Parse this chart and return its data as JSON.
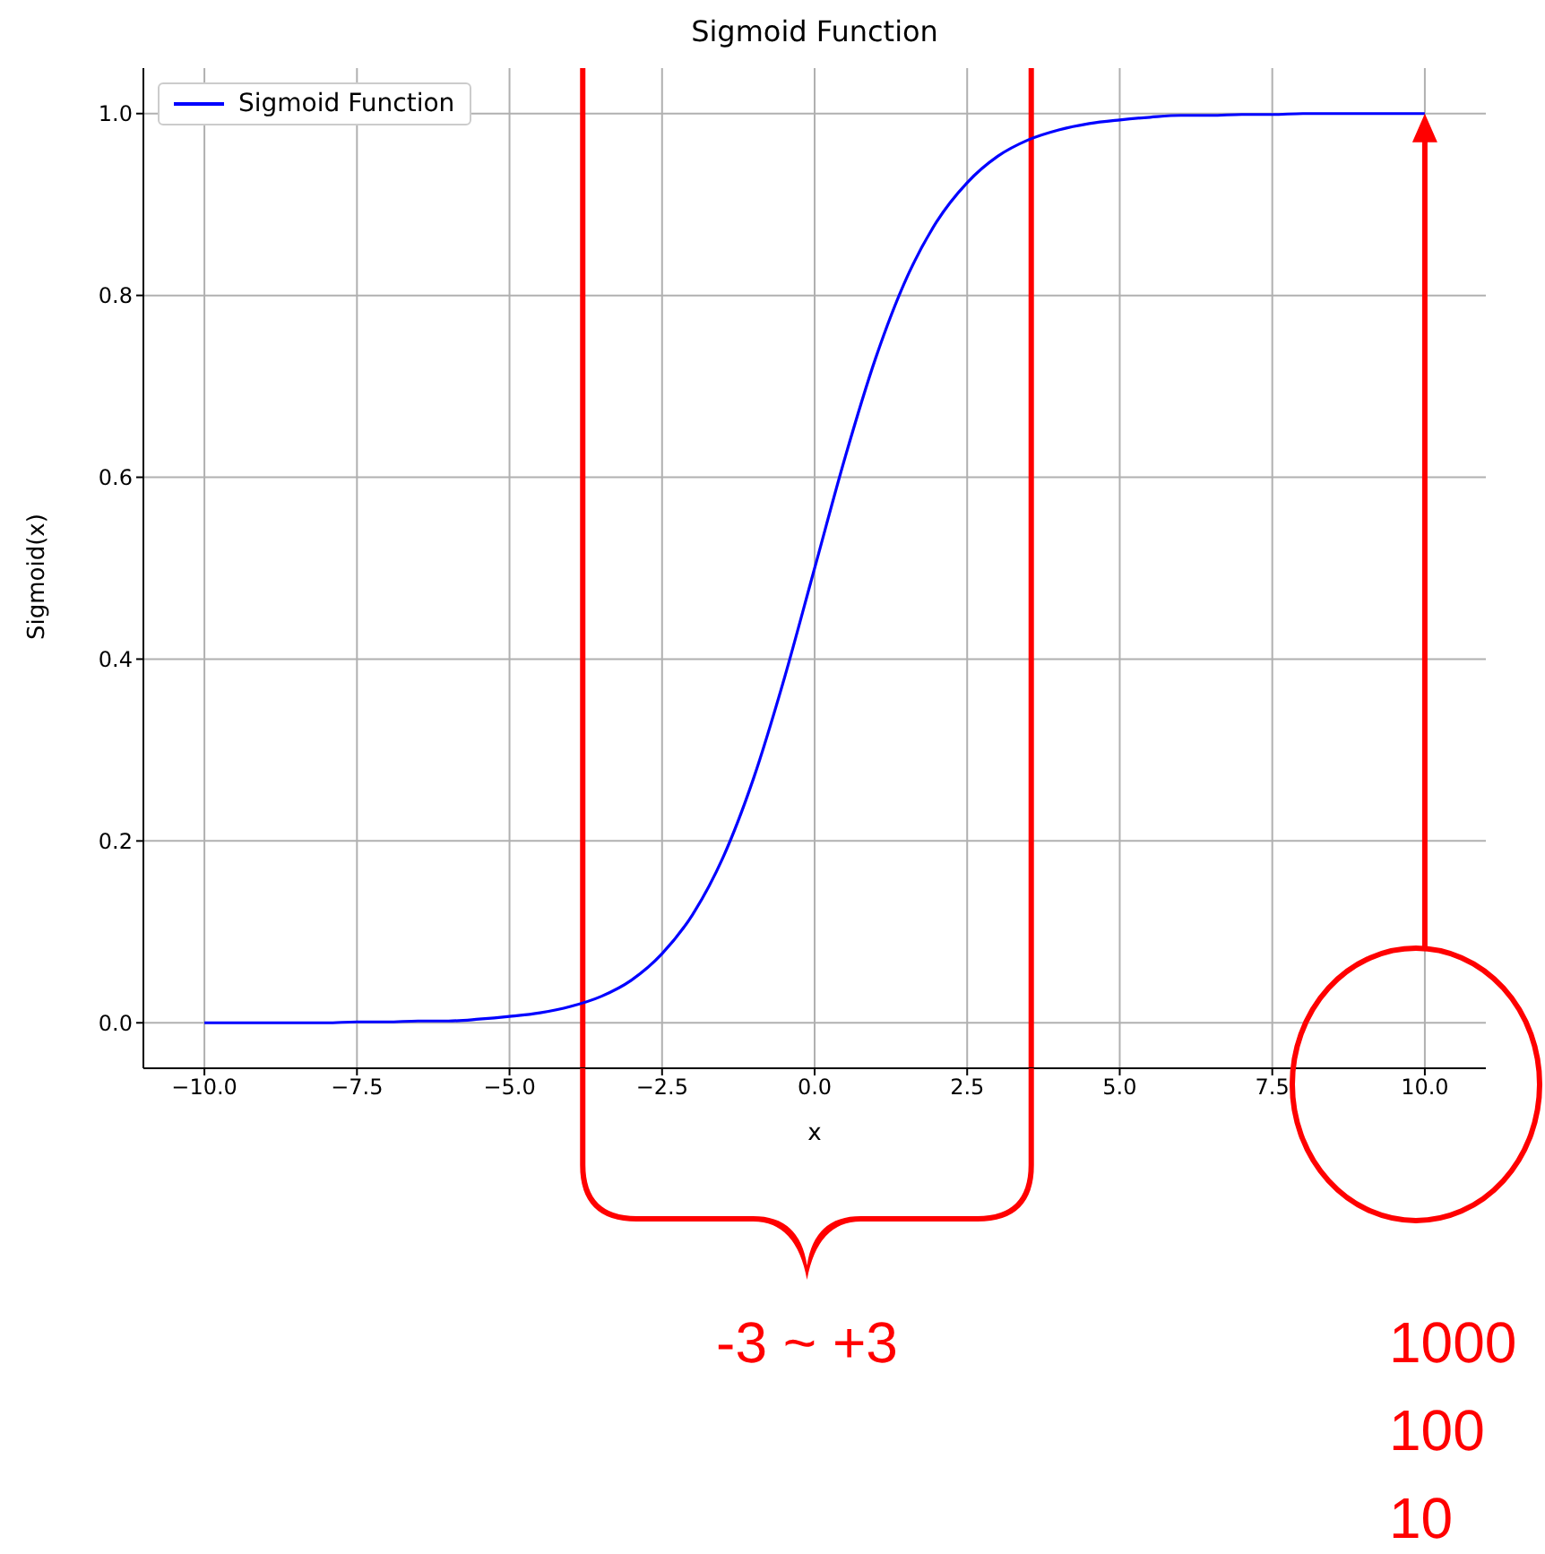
{
  "chart_data": {
    "type": "line",
    "title": "Sigmoid Function",
    "xlabel": "x",
    "ylabel": "Sigmoid(x)",
    "x": [
      -10,
      -9.5,
      -9,
      -8.5,
      -8,
      -7.5,
      -7,
      -6.5,
      -6,
      -5.5,
      -5,
      -4.5,
      -4,
      -3.5,
      -3,
      -2.5,
      -2,
      -1.5,
      -1,
      -0.5,
      0,
      0.5,
      1,
      1.5,
      2,
      2.5,
      3,
      3.5,
      4,
      4.5,
      5,
      5.5,
      6,
      6.5,
      7,
      7.5,
      8,
      8.5,
      9,
      9.5,
      10
    ],
    "series": [
      {
        "name": "Sigmoid Function",
        "color": "#0000ff",
        "values": [
          0.0,
          0.0,
          0.0,
          0.0,
          0.0,
          0.001,
          0.001,
          0.002,
          0.002,
          0.004,
          0.007,
          0.011,
          0.018,
          0.029,
          0.047,
          0.076,
          0.119,
          0.182,
          0.269,
          0.378,
          0.5,
          0.622,
          0.731,
          0.818,
          0.881,
          0.924,
          0.953,
          0.971,
          0.982,
          0.989,
          0.993,
          0.996,
          0.998,
          0.998,
          0.999,
          0.999,
          1.0,
          1.0,
          1.0,
          1.0,
          1.0
        ]
      }
    ],
    "xlim": [
      -11,
      11
    ],
    "ylim": [
      -0.05,
      1.05
    ],
    "xticks": [
      {
        "value": -10,
        "label": "−10.0"
      },
      {
        "value": -7.5,
        "label": "−7.5"
      },
      {
        "value": -5,
        "label": "−5.0"
      },
      {
        "value": -2.5,
        "label": "−2.5"
      },
      {
        "value": 0,
        "label": "0.0"
      },
      {
        "value": 2.5,
        "label": "2.5"
      },
      {
        "value": 5,
        "label": "5.0"
      },
      {
        "value": 7.5,
        "label": "7.5"
      },
      {
        "value": 10,
        "label": "10.0"
      }
    ],
    "yticks": [
      {
        "value": 0,
        "label": "0.0"
      },
      {
        "value": 0.2,
        "label": "0.2"
      },
      {
        "value": 0.4,
        "label": "0.4"
      },
      {
        "value": 0.6,
        "label": "0.6"
      },
      {
        "value": 0.8,
        "label": "0.8"
      },
      {
        "value": 1,
        "label": "1.0"
      }
    ],
    "ref_lines": [
      {
        "axis": "x",
        "value": -3.8,
        "color": "#ff0000"
      },
      {
        "axis": "x",
        "value": 3.55,
        "color": "#ff0000"
      }
    ],
    "annotations": [
      "-3 ~ +3",
      "1000",
      "100",
      "10"
    ],
    "grid": true,
    "legend": "top left",
    "marker": "none",
    "line_style": "solid"
  }
}
